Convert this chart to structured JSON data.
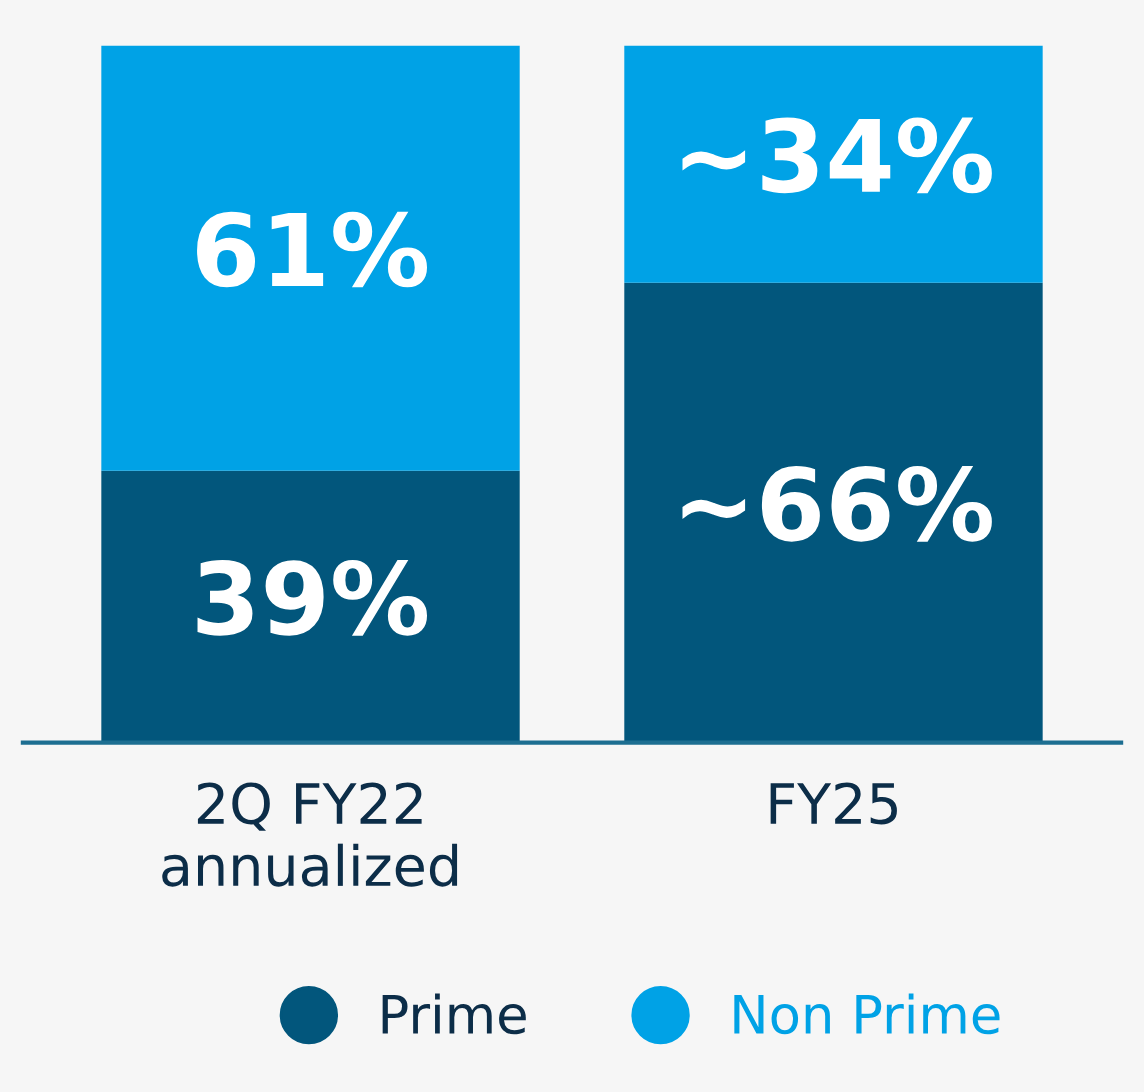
{
  "chart_data": {
    "type": "bar",
    "stacked": true,
    "categories": [
      "2Q FY22\nannualized",
      "FY25"
    ],
    "series": [
      {
        "name": "Prime",
        "color": "#02567c",
        "values": [
          39,
          66
        ],
        "value_labels": [
          "39%",
          "~66%"
        ]
      },
      {
        "name": "Non Prime",
        "color": "#00a2e6",
        "values": [
          61,
          34
        ],
        "value_labels": [
          "61%",
          "~34%"
        ]
      }
    ],
    "legend": "bottom",
    "grid": false
  }
}
